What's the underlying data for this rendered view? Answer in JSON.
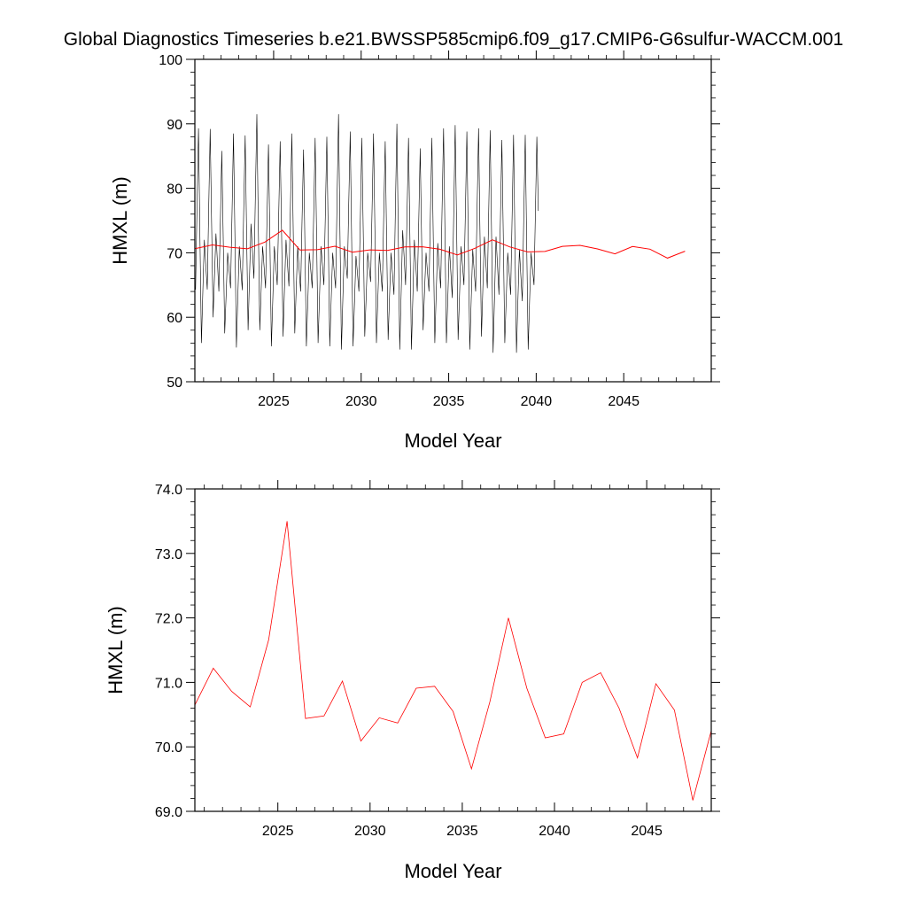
{
  "chart_data": {
    "title": "Global Diagnostics Timeseries b.e21.BWSSP585cmip6.f09_g17.CMIP6-G6sulfur-WACCM.001",
    "charts": [
      {
        "type": "line",
        "xlabel": "Model Year",
        "ylabel": "HMXL (m)",
        "xlim": [
          2020.5,
          2050.0
        ],
        "ylim": [
          50,
          100
        ],
        "x_ticks": [
          2025,
          2030,
          2035,
          2040,
          2045
        ],
        "x_tick_labels": [
          "2025",
          "2030",
          "2035",
          "2040",
          "2045"
        ],
        "y_ticks": [
          50,
          60,
          70,
          80,
          90,
          100
        ],
        "y_tick_labels": [
          "50",
          "60",
          "70",
          "80",
          "90",
          "100"
        ],
        "grid": false,
        "legend": "none",
        "series": [
          {
            "kind": "monthly",
            "color": "#000000",
            "start_x": 2020.54,
            "step": 0.08333,
            "seasonal_low": [
              64.3,
              56.0,
              64.3,
              60.0,
              64.0,
              57.5,
              64.5,
              55.3,
              64.2,
              58.0,
              66.0,
              58.0,
              64.5,
              55.5,
              65.0,
              57.0,
              64.8,
              57.5,
              64.0,
              55.5,
              64.5,
              56.0,
              65.0,
              55.5,
              64.5,
              55.0,
              66.0,
              55.5,
              64.0,
              57.0,
              65.5,
              56.0,
              64.0,
              56.5,
              63.5,
              55.0,
              65.0,
              55.0,
              64.0,
              58.0,
              64.0,
              56.0,
              64.5,
              56.0,
              63.0,
              56.5,
              65.0,
              55.0,
              64.0,
              57.0,
              64.5,
              54.5,
              63.5,
              56.0,
              63.5,
              54.5,
              62.5,
              55.0,
              65.0
            ],
            "seasonal_high": [
              89.3,
              72.0,
              89.2,
              73.0,
              85.8,
              70.0,
              88.5,
              71.0,
              88.2,
              74.5,
              91.5,
              71.0,
              86.8,
              71.0,
              87.3,
              72.0,
              88.5,
              71.0,
              86.0,
              70.0,
              87.8,
              71.0,
              88.0,
              70.0,
              91.5,
              71.0,
              88.8,
              69.5,
              87.8,
              70.0,
              88.5,
              70.0,
              87.3,
              70.0,
              90.0,
              73.5,
              87.8,
              72.0,
              86.2,
              70.0,
              87.8,
              71.5,
              89.3,
              71.0,
              89.8,
              71.0,
              88.8,
              70.5,
              89.3,
              72.5,
              89.0,
              72.5,
              87.5,
              70.0,
              88.3,
              70.5,
              88.3,
              70.0,
              88.0
            ]
          },
          {
            "kind": "annual",
            "color": "#ff0000",
            "x": [
              2020.5,
              2021.5,
              2022.5,
              2023.5,
              2024.5,
              2025.5,
              2026.5,
              2027.5,
              2028.5,
              2029.5,
              2030.5,
              2031.5,
              2032.5,
              2033.5,
              2034.5,
              2035.5,
              2036.5,
              2037.5,
              2038.5,
              2039.5,
              2040.5,
              2041.5,
              2042.5,
              2043.5,
              2044.5,
              2045.5,
              2046.5,
              2047.5,
              2048.5
            ],
            "values": [
              70.65,
              71.22,
              70.86,
              70.62,
              71.66,
              73.5,
              70.44,
              70.48,
              71.02,
              70.09,
              70.45,
              70.37,
              70.91,
              70.94,
              70.55,
              69.66,
              70.7,
              72.0,
              70.91,
              70.14,
              70.2,
              71.0,
              71.15,
              70.6,
              69.83,
              70.98,
              70.57,
              69.17,
              70.25
            ]
          }
        ]
      },
      {
        "type": "line",
        "xlabel": "Model Year",
        "ylabel": "HMXL (m)",
        "xlim": [
          2020.5,
          2048.5
        ],
        "ylim": [
          69.0,
          74.0
        ],
        "x_ticks": [
          2025,
          2030,
          2035,
          2040,
          2045
        ],
        "x_tick_labels": [
          "2025",
          "2030",
          "2035",
          "2040",
          "2045"
        ],
        "y_ticks": [
          69.0,
          70.0,
          71.0,
          72.0,
          73.0,
          74.0
        ],
        "y_tick_labels": [
          "69.0",
          "70.0",
          "71.0",
          "72.0",
          "73.0",
          "74.0"
        ],
        "grid": false,
        "legend": "none",
        "series": [
          {
            "kind": "annual",
            "color": "#ff0000",
            "x": [
              2020.5,
              2021.5,
              2022.5,
              2023.5,
              2024.5,
              2025.5,
              2026.5,
              2027.5,
              2028.5,
              2029.5,
              2030.5,
              2031.5,
              2032.5,
              2033.5,
              2034.5,
              2035.5,
              2036.5,
              2037.5,
              2038.5,
              2039.5,
              2040.5,
              2041.5,
              2042.5,
              2043.5,
              2044.5,
              2045.5,
              2046.5,
              2047.5,
              2048.5
            ],
            "values": [
              70.65,
              71.22,
              70.86,
              70.62,
              71.66,
              73.5,
              70.44,
              70.48,
              71.02,
              70.09,
              70.45,
              70.37,
              70.91,
              70.94,
              70.55,
              69.66,
              70.7,
              72.0,
              70.91,
              70.14,
              70.2,
              71.0,
              71.15,
              70.6,
              69.83,
              70.98,
              70.57,
              69.17,
              70.25
            ]
          }
        ]
      }
    ]
  }
}
